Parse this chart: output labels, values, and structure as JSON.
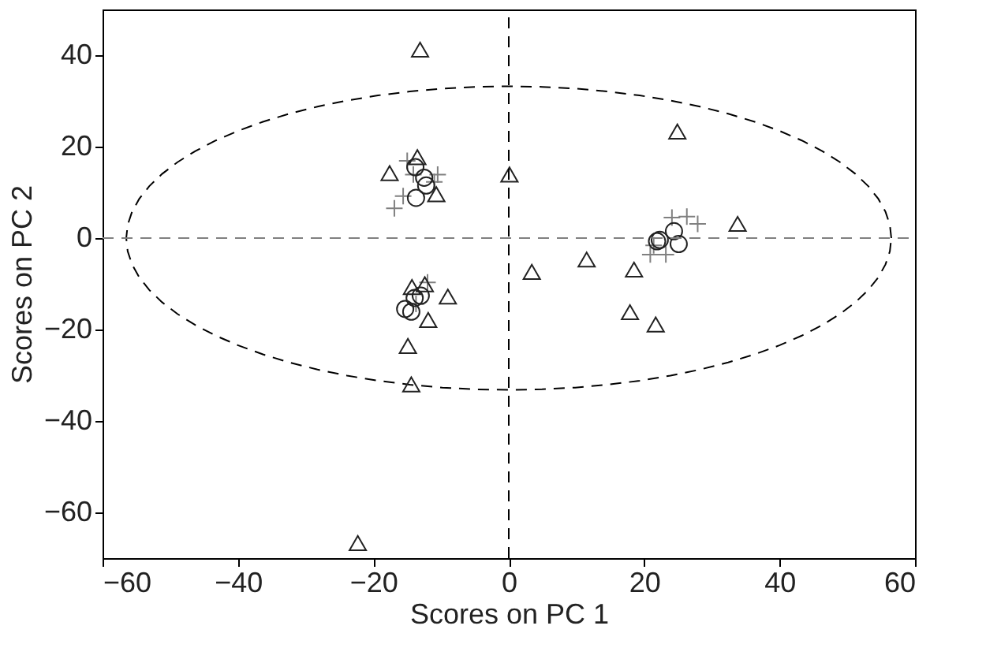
{
  "chart_data": {
    "type": "scatter",
    "xlabel": "Scores on PC 1",
    "ylabel": "Scores on PC 2",
    "xlim": [
      -60,
      60
    ],
    "ylim": [
      -70,
      50
    ],
    "xticks": [
      -60,
      -40,
      -20,
      0,
      20,
      40,
      60
    ],
    "yticks": [
      -60,
      -40,
      -20,
      0,
      20,
      40
    ],
    "grid": false,
    "ref_lines": [
      {
        "axis": "x",
        "value": 0,
        "color": "#000000",
        "line_style": "dashed"
      },
      {
        "axis": "y",
        "value": 0,
        "color": "#808080",
        "line_style": "dashed"
      }
    ],
    "series": [
      {
        "type": "scatter",
        "color": "#808080",
        "marker": "cross",
        "x": [
          -16.9,
          -15.6,
          -15.0,
          -10.5,
          -11.0,
          -14.1,
          -12.0,
          -13.7,
          26.3,
          27.9,
          24.1,
          20.9,
          23.2,
          21.4
        ],
        "values": [
          6.5,
          9.2,
          16.9,
          13.9,
          12.3,
          13.9,
          -9.7,
          -14.4,
          4.7,
          3.1,
          4.5,
          -3.6,
          -3.6,
          -1.6
        ]
      },
      {
        "type": "scatter",
        "color": "#222222",
        "marker": "circle",
        "x": [
          -13.8,
          -12.5,
          -12.2,
          -13.7,
          -15.3,
          -14.4,
          -13.9,
          -13.0,
          21.9,
          24.4,
          25.1,
          22.3
        ],
        "values": [
          15.5,
          13.2,
          11.5,
          8.8,
          -15.5,
          -16.1,
          -13.1,
          -12.6,
          -0.7,
          1.5,
          -1.3,
          -0.4
        ]
      },
      {
        "type": "scatter",
        "color": "#222222",
        "marker": "triangle",
        "x": [
          -13.1,
          -17.6,
          -13.5,
          -10.7,
          0.1,
          24.9,
          33.8,
          11.5,
          3.4,
          18.5,
          17.9,
          21.7,
          -9.0,
          -11.9,
          -14.9,
          -14.4,
          -22.3,
          -14.3,
          -12.4
        ],
        "values": [
          41.2,
          14.2,
          17.7,
          9.6,
          13.9,
          23.3,
          3.1,
          -4.7,
          -7.4,
          -6.9,
          -16.2,
          -18.9,
          -12.8,
          -17.9,
          -23.6,
          -32.0,
          -66.7,
          -10.7,
          -10.1
        ]
      }
    ]
  }
}
